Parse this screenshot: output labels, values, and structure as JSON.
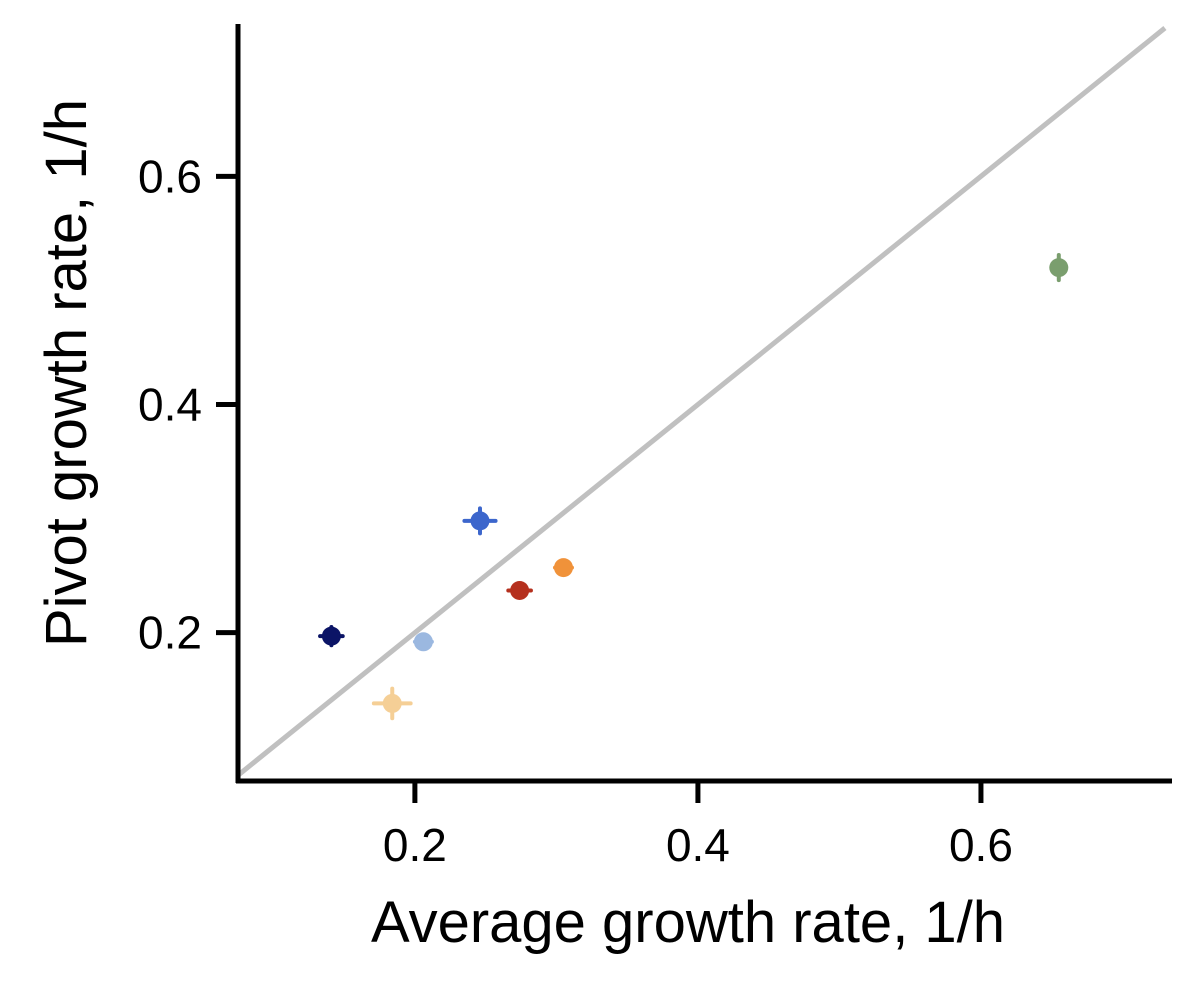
{
  "chart_data": {
    "type": "scatter",
    "title": "",
    "xlabel": "Average growth rate, 1/h",
    "ylabel": "Pivot growth rate, 1/h",
    "xlim": [
      0.075,
      0.735
    ],
    "ylim": [
      0.07,
      0.73
    ],
    "xticks": [
      0.2,
      0.4,
      0.6
    ],
    "xtick_labels": [
      "0.2",
      "0.4",
      "0.6"
    ],
    "yticks": [
      0.2,
      0.4,
      0.6
    ],
    "ytick_labels": [
      "0.2",
      "0.4",
      "0.6"
    ],
    "grid": false,
    "legend": "none",
    "reference_line": {
      "kind": "identity y=x",
      "color": "#c0c0c0"
    },
    "points": [
      {
        "x": 0.141,
        "y": 0.197,
        "xerr": 0.008,
        "yerr": 0.008,
        "color": "#0b1466"
      },
      {
        "x": 0.184,
        "y": 0.138,
        "xerr": 0.013,
        "yerr": 0.013,
        "color": "#f5cf96"
      },
      {
        "x": 0.206,
        "y": 0.192,
        "xerr": 0.006,
        "yerr": 0.006,
        "color": "#9bb8e0"
      },
      {
        "x": 0.246,
        "y": 0.298,
        "xerr": 0.011,
        "yerr": 0.011,
        "color": "#3c66cc"
      },
      {
        "x": 0.274,
        "y": 0.237,
        "xerr": 0.008,
        "yerr": 0.006,
        "color": "#b5301e"
      },
      {
        "x": 0.305,
        "y": 0.257,
        "xerr": 0.006,
        "yerr": 0.006,
        "color": "#f0923a"
      },
      {
        "x": 0.655,
        "y": 0.52,
        "xerr": 0.004,
        "yerr": 0.011,
        "color": "#7a9e6e"
      }
    ]
  }
}
